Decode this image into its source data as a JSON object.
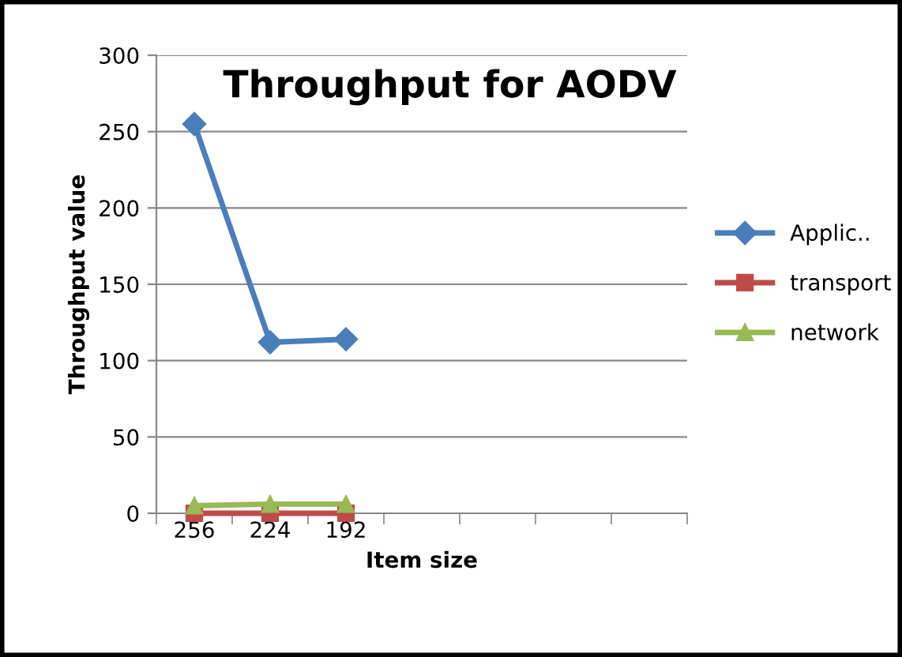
{
  "chart_data": {
    "type": "line",
    "title": "Throughput for AODV",
    "xlabel": "Item size",
    "ylabel": "Throughput value",
    "categories": [
      "256",
      "224",
      "192",
      null,
      null,
      null,
      null
    ],
    "series": [
      {
        "name": "Applic..",
        "color": "#4a7ebb",
        "marker": "diamond",
        "values": [
          255,
          112,
          114,
          null,
          null,
          null,
          null
        ]
      },
      {
        "name": "transport",
        "color": "#be4b48",
        "marker": "square",
        "values": [
          0,
          0,
          0,
          null,
          null,
          null,
          null
        ]
      },
      {
        "name": "network",
        "color": "#98b954",
        "marker": "triangle",
        "values": [
          5,
          6,
          6,
          null,
          null,
          null,
          null
        ]
      }
    ],
    "ylim": [
      0,
      300
    ],
    "yticks": [
      0,
      50,
      100,
      150,
      200,
      250,
      300
    ],
    "grid": "y",
    "legend": "right"
  }
}
